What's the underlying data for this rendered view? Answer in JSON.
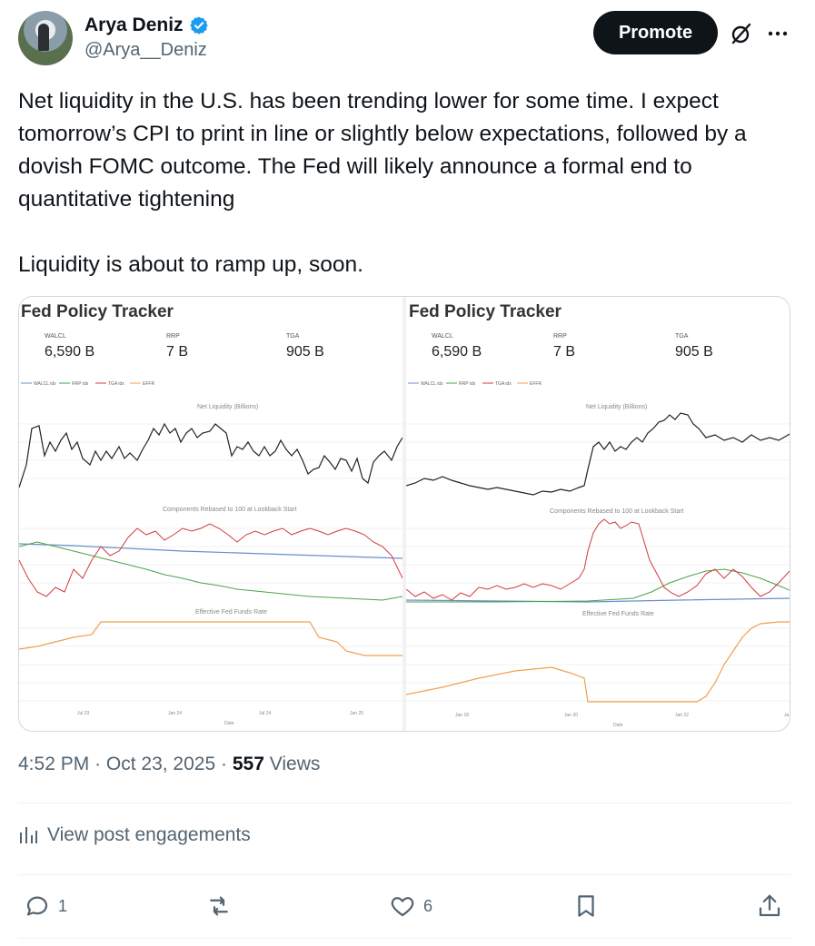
{
  "author": {
    "display_name": "Arya Deniz",
    "handle": "@Arya__Deniz"
  },
  "header": {
    "promote_label": "Promote"
  },
  "post": {
    "text": "Net liquidity in the U.S. has been trending lower for some time. I expect tomorrow’s CPI to print in line or slightly below expectations, followed by a dovish FOMC outcome. The Fed will likely announce a formal end to quantitative tightening\n\nLiquidity is about to ramp up, soon."
  },
  "charts": {
    "left": {
      "title": "Fed Policy Tracker",
      "metrics": [
        {
          "label": "WALCL",
          "value": "6,590 B"
        },
        {
          "label": "RRP",
          "value": "7 B"
        },
        {
          "label": "TGA",
          "value": "905 B"
        }
      ],
      "legend": [
        "WALCL idx",
        "RRP idx",
        "TGA idx",
        "EFFR"
      ],
      "sub_titles": [
        "Net Liquidity (Billions)",
        "Components Rebased to 100 at Lookback Start",
        "Effective Fed Funds Rate"
      ],
      "x_ticks": [
        "Jul 23",
        "Jan 24",
        "Jul 24",
        "Jan 25"
      ],
      "x_label": "Date"
    },
    "right": {
      "title": "Fed Policy Tracker",
      "metrics": [
        {
          "label": "WALCL",
          "value": "6,590 B"
        },
        {
          "label": "RRP",
          "value": "7 B"
        },
        {
          "label": "TGA",
          "value": "905 B"
        }
      ],
      "legend": [
        "WALCL idx",
        "RRP idx",
        "TGA idx",
        "EFFR"
      ],
      "sub_titles": [
        "Net Liquidity (Billions)",
        "Components Rebased to 100 at Lookback Start",
        "Effective Fed Funds Rate"
      ],
      "x_ticks": [
        "Jan 18",
        "Jan 20",
        "Jan 22",
        "Ja"
      ],
      "x_label": "Date"
    },
    "colors": {
      "net_liquidity": "#222222",
      "walcl": "#6a8fc7",
      "rrp": "#4aa34a",
      "tga": "#d23a3a",
      "effr": "#f0a050"
    }
  },
  "meta": {
    "time": "4:52 PM",
    "date": "Oct 23, 2025",
    "dot": "·",
    "views_count": "557",
    "views_label": "Views"
  },
  "engagements_label": "View post engagements",
  "actions": {
    "replies": "1",
    "reposts": "",
    "likes": "6"
  }
}
